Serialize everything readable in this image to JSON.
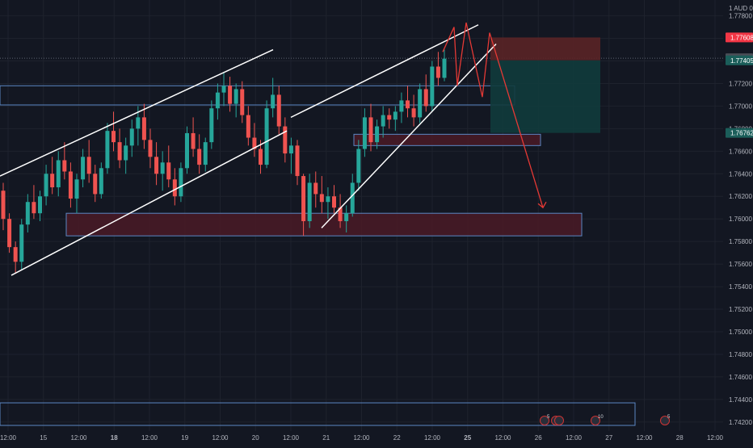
{
  "colors": {
    "background": "#131722",
    "grid": "#1e222d",
    "text": "#b2b5be",
    "bull": "#26a69a",
    "bear": "#ef5350",
    "zone_border": "#5b87c4",
    "demand_fill": "#4a1a26",
    "trendline": "#ffffff",
    "projection": "#e53935",
    "stop_fill": "#5a2326",
    "target_fill": "#113b3c"
  },
  "price_scale": {
    "currency": "AUD",
    "labels": [
      "1.77800",
      "1.77600",
      "1.77400",
      "1.77200",
      "1.77000",
      "1.76800",
      "1.76600",
      "1.76400",
      "1.76200",
      "1.76000",
      "1.75800",
      "1.75600",
      "1.75400",
      "1.75200",
      "1.75000",
      "1.74800",
      "1.74600",
      "1.74400",
      "1.74200"
    ]
  },
  "price_badges": [
    {
      "name": "stop-price-badge",
      "text": "1.77608",
      "price": 1.77608,
      "color": "#f23645"
    },
    {
      "name": "current-price-badge",
      "text": "1.77424",
      "price": 1.77424,
      "color": "#4a4d56"
    },
    {
      "name": "entry-price-badge",
      "text": "1.77405",
      "price": 1.77405,
      "color": "#1b5e5a"
    },
    {
      "name": "target-price-badge",
      "text": "1.76762",
      "price": 1.76762,
      "color": "#1b5e5a"
    }
  ],
  "time_scale": {
    "labels": [
      {
        "text": "12:00",
        "bold": false
      },
      {
        "text": "15",
        "bold": false
      },
      {
        "text": "12:00",
        "bold": false
      },
      {
        "text": "18",
        "bold": true
      },
      {
        "text": "12:00",
        "bold": false
      },
      {
        "text": "19",
        "bold": false
      },
      {
        "text": "12:00",
        "bold": false
      },
      {
        "text": "20",
        "bold": false
      },
      {
        "text": "12:00",
        "bold": false
      },
      {
        "text": "21",
        "bold": false
      },
      {
        "text": "12:00",
        "bold": false
      },
      {
        "text": "22",
        "bold": false
      },
      {
        "text": "12:00",
        "bold": false
      },
      {
        "text": "25",
        "bold": true
      },
      {
        "text": "12:00",
        "bold": false
      },
      {
        "text": "26",
        "bold": false
      },
      {
        "text": "12:00",
        "bold": false
      },
      {
        "text": "27",
        "bold": false
      },
      {
        "text": "12:00",
        "bold": false
      },
      {
        "text": "28",
        "bold": false
      },
      {
        "text": "12:00",
        "bold": false
      }
    ]
  },
  "event_markers": [
    "5",
    "",
    "",
    "10",
    "5"
  ],
  "chart_data": {
    "type": "candlestick",
    "symbol_currency": "AUD",
    "ylim": [
      1.7412,
      1.7794
    ],
    "current_price": 1.77424,
    "candles": [
      {
        "o": 1.7625,
        "h": 1.7632,
        "l": 1.759,
        "c": 1.76
      },
      {
        "o": 1.76,
        "h": 1.7605,
        "l": 1.757,
        "c": 1.7575
      },
      {
        "o": 1.7575,
        "h": 1.758,
        "l": 1.7552,
        "c": 1.7562
      },
      {
        "o": 1.7562,
        "h": 1.76,
        "l": 1.7555,
        "c": 1.7595
      },
      {
        "o": 1.7595,
        "h": 1.7622,
        "l": 1.7588,
        "c": 1.7615
      },
      {
        "o": 1.7615,
        "h": 1.763,
        "l": 1.76,
        "c": 1.7605
      },
      {
        "o": 1.7605,
        "h": 1.7625,
        "l": 1.7598,
        "c": 1.762
      },
      {
        "o": 1.762,
        "h": 1.7648,
        "l": 1.7612,
        "c": 1.764
      },
      {
        "o": 1.764,
        "h": 1.7655,
        "l": 1.7622,
        "c": 1.7628
      },
      {
        "o": 1.7628,
        "h": 1.766,
        "l": 1.762,
        "c": 1.7652
      },
      {
        "o": 1.7652,
        "h": 1.7668,
        "l": 1.7635,
        "c": 1.7642
      },
      {
        "o": 1.7642,
        "h": 1.765,
        "l": 1.761,
        "c": 1.7618
      },
      {
        "o": 1.7618,
        "h": 1.764,
        "l": 1.7605,
        "c": 1.7635
      },
      {
        "o": 1.7635,
        "h": 1.7662,
        "l": 1.7628,
        "c": 1.7655
      },
      {
        "o": 1.7655,
        "h": 1.767,
        "l": 1.7632,
        "c": 1.764
      },
      {
        "o": 1.764,
        "h": 1.7648,
        "l": 1.7615,
        "c": 1.7622
      },
      {
        "o": 1.7622,
        "h": 1.765,
        "l": 1.7618,
        "c": 1.7645
      },
      {
        "o": 1.7645,
        "h": 1.7685,
        "l": 1.764,
        "c": 1.7678
      },
      {
        "o": 1.7678,
        "h": 1.7695,
        "l": 1.766,
        "c": 1.7668
      },
      {
        "o": 1.7668,
        "h": 1.768,
        "l": 1.7645,
        "c": 1.7652
      },
      {
        "o": 1.7652,
        "h": 1.7672,
        "l": 1.764,
        "c": 1.7665
      },
      {
        "o": 1.7665,
        "h": 1.7688,
        "l": 1.7655,
        "c": 1.768
      },
      {
        "o": 1.768,
        "h": 1.77,
        "l": 1.7665,
        "c": 1.769
      },
      {
        "o": 1.769,
        "h": 1.7702,
        "l": 1.7662,
        "c": 1.767
      },
      {
        "o": 1.767,
        "h": 1.768,
        "l": 1.7645,
        "c": 1.7655
      },
      {
        "o": 1.7655,
        "h": 1.7668,
        "l": 1.763,
        "c": 1.764
      },
      {
        "o": 1.764,
        "h": 1.766,
        "l": 1.7625,
        "c": 1.765
      },
      {
        "o": 1.765,
        "h": 1.7665,
        "l": 1.7628,
        "c": 1.7635
      },
      {
        "o": 1.7635,
        "h": 1.7645,
        "l": 1.7612,
        "c": 1.762
      },
      {
        "o": 1.762,
        "h": 1.765,
        "l": 1.7615,
        "c": 1.7645
      },
      {
        "o": 1.7645,
        "h": 1.7682,
        "l": 1.764,
        "c": 1.7676
      },
      {
        "o": 1.7676,
        "h": 1.769,
        "l": 1.7655,
        "c": 1.7662
      },
      {
        "o": 1.7662,
        "h": 1.7675,
        "l": 1.764,
        "c": 1.7648
      },
      {
        "o": 1.7648,
        "h": 1.7672,
        "l": 1.7642,
        "c": 1.7668
      },
      {
        "o": 1.7668,
        "h": 1.7705,
        "l": 1.7662,
        "c": 1.7698
      },
      {
        "o": 1.7698,
        "h": 1.772,
        "l": 1.7688,
        "c": 1.7712
      },
      {
        "o": 1.7712,
        "h": 1.773,
        "l": 1.77,
        "c": 1.7718
      },
      {
        "o": 1.7718,
        "h": 1.7726,
        "l": 1.7695,
        "c": 1.7702
      },
      {
        "o": 1.7702,
        "h": 1.772,
        "l": 1.769,
        "c": 1.7715
      },
      {
        "o": 1.7715,
        "h": 1.7722,
        "l": 1.7685,
        "c": 1.7692
      },
      {
        "o": 1.7692,
        "h": 1.77,
        "l": 1.7665,
        "c": 1.7672
      },
      {
        "o": 1.7672,
        "h": 1.7685,
        "l": 1.7655,
        "c": 1.7662
      },
      {
        "o": 1.7662,
        "h": 1.767,
        "l": 1.764,
        "c": 1.7648
      },
      {
        "o": 1.7648,
        "h": 1.7705,
        "l": 1.7645,
        "c": 1.7698
      },
      {
        "o": 1.7698,
        "h": 1.7725,
        "l": 1.769,
        "c": 1.771
      },
      {
        "o": 1.771,
        "h": 1.7718,
        "l": 1.7675,
        "c": 1.7682
      },
      {
        "o": 1.7682,
        "h": 1.769,
        "l": 1.765,
        "c": 1.7658
      },
      {
        "o": 1.7658,
        "h": 1.7672,
        "l": 1.764,
        "c": 1.7665
      },
      {
        "o": 1.7665,
        "h": 1.767,
        "l": 1.763,
        "c": 1.7638
      },
      {
        "o": 1.7638,
        "h": 1.764,
        "l": 1.7585,
        "c": 1.7598
      },
      {
        "o": 1.7598,
        "h": 1.764,
        "l": 1.7592,
        "c": 1.7632
      },
      {
        "o": 1.7632,
        "h": 1.7642,
        "l": 1.761,
        "c": 1.7622
      },
      {
        "o": 1.7622,
        "h": 1.7638,
        "l": 1.7605,
        "c": 1.7615
      },
      {
        "o": 1.7615,
        "h": 1.7628,
        "l": 1.76,
        "c": 1.762
      },
      {
        "o": 1.762,
        "h": 1.763,
        "l": 1.7605,
        "c": 1.761
      },
      {
        "o": 1.761,
        "h": 1.7622,
        "l": 1.7592,
        "c": 1.7598
      },
      {
        "o": 1.7598,
        "h": 1.7612,
        "l": 1.7588,
        "c": 1.7605
      },
      {
        "o": 1.7605,
        "h": 1.764,
        "l": 1.7602,
        "c": 1.7632
      },
      {
        "o": 1.7632,
        "h": 1.767,
        "l": 1.7625,
        "c": 1.7662
      },
      {
        "o": 1.7662,
        "h": 1.7698,
        "l": 1.7655,
        "c": 1.769
      },
      {
        "o": 1.769,
        "h": 1.7702,
        "l": 1.766,
        "c": 1.7668
      },
      {
        "o": 1.7668,
        "h": 1.7688,
        "l": 1.7662,
        "c": 1.7682
      },
      {
        "o": 1.7682,
        "h": 1.77,
        "l": 1.7672,
        "c": 1.7692
      },
      {
        "o": 1.7692,
        "h": 1.7698,
        "l": 1.768,
        "c": 1.7688
      },
      {
        "o": 1.7688,
        "h": 1.77,
        "l": 1.7678,
        "c": 1.7695
      },
      {
        "o": 1.7695,
        "h": 1.7712,
        "l": 1.7685,
        "c": 1.7705
      },
      {
        "o": 1.7705,
        "h": 1.7718,
        "l": 1.769,
        "c": 1.7698
      },
      {
        "o": 1.7698,
        "h": 1.771,
        "l": 1.7682,
        "c": 1.769
      },
      {
        "o": 1.769,
        "h": 1.772,
        "l": 1.7685,
        "c": 1.7715
      },
      {
        "o": 1.7715,
        "h": 1.7728,
        "l": 1.7695,
        "c": 1.77
      },
      {
        "o": 1.77,
        "h": 1.774,
        "l": 1.7695,
        "c": 1.7735
      },
      {
        "o": 1.7735,
        "h": 1.7748,
        "l": 1.7718,
        "c": 1.7725
      },
      {
        "o": 1.7725,
        "h": 1.775,
        "l": 1.7722,
        "c": 1.7742
      }
    ]
  },
  "drawings": {
    "channel": [
      {
        "name": "channel-upper-line",
        "x1": 0,
        "p1": 1.7638,
        "x2": 338,
        "p2": 1.775
      },
      {
        "name": "channel-lower-line",
        "x1": 14,
        "p1": 1.755,
        "x2": 355,
        "p2": 1.7678
      }
    ],
    "wedge": [
      {
        "name": "wedge-upper-line",
        "x1": 360,
        "p1": 1.769,
        "x2": 592,
        "p2": 1.7772
      },
      {
        "name": "wedge-lower-line",
        "x1": 398,
        "p1": 1.7592,
        "x2": 614,
        "p2": 1.7755
      }
    ],
    "zones": [
      {
        "name": "resistance-zone-outline",
        "x1": 0,
        "x2": 637,
        "top": 1.7718,
        "bottom": 1.7701,
        "fill": "none"
      },
      {
        "name": "support-zone-small",
        "x1": 438,
        "x2": 669,
        "top": 1.7675,
        "bottom": 1.7665,
        "fill": "#4a1a26"
      },
      {
        "name": "demand-zone-large",
        "x1": 82,
        "x2": 720,
        "top": 1.7605,
        "bottom": 1.7585,
        "fill": "#4a1a26"
      },
      {
        "name": "bottom-zone-outline",
        "x1": 0,
        "x2": 786,
        "top": 1.7437,
        "bottom": 1.7417,
        "fill": "none"
      }
    ],
    "position": {
      "x1": 607,
      "x2": 743,
      "stop": 1.77608,
      "entry": 1.77405,
      "target": 1.76762
    },
    "projection_path": [
      [
        548,
        1.7748
      ],
      [
        562,
        1.777
      ],
      [
        566,
        1.7718
      ],
      [
        577,
        1.7774
      ],
      [
        597,
        1.7708
      ],
      [
        606,
        1.7765
      ],
      [
        672,
        1.761
      ]
    ],
    "current_price_line": 1.77424
  }
}
